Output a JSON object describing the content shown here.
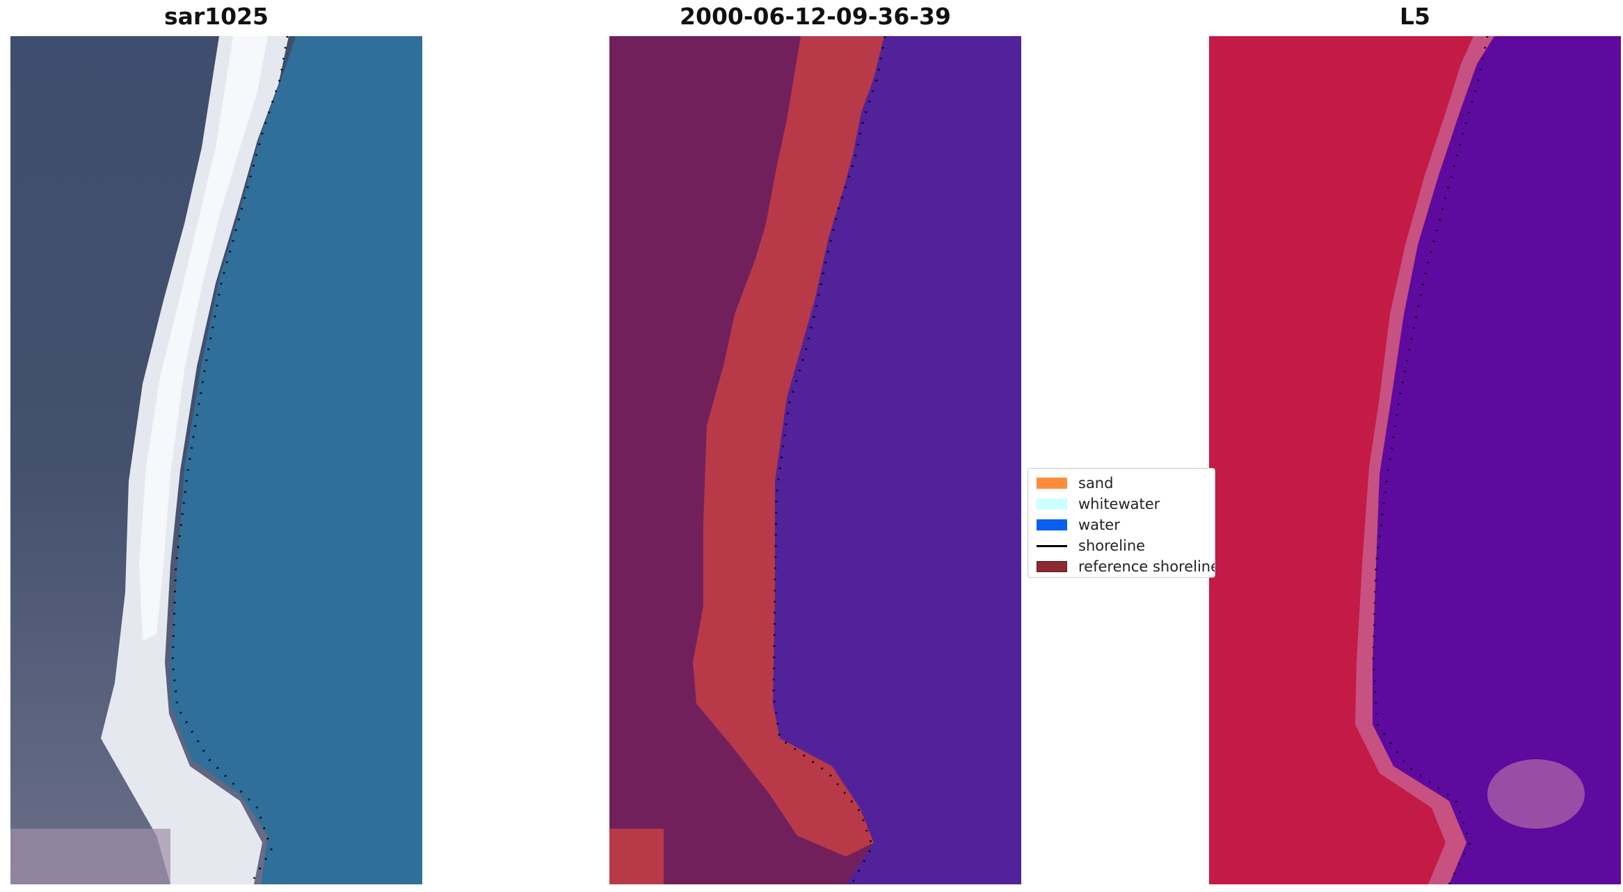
{
  "panels": [
    {
      "title": "sar1025",
      "kind": "rgb-image"
    },
    {
      "title": "2000-06-12-09-36-39",
      "kind": "classified-image"
    },
    {
      "title": "L5",
      "kind": "mndwi-image"
    }
  ],
  "legend": {
    "items": [
      {
        "label": "sand",
        "color": "#ff8c3a"
      },
      {
        "label": "whitewater",
        "color": "#ccffff"
      },
      {
        "label": "water",
        "color": "#0a5ff0"
      },
      {
        "label": "shoreline",
        "color": "#000000",
        "style": "line"
      },
      {
        "label": "reference shoreline",
        "color": "#8b2a30"
      }
    ]
  },
  "colors": {
    "sand_overlay": "#b83a48",
    "water_overlay": "#52229b",
    "land_overlay": "#72205c",
    "mndwi_land": "#c41a46",
    "mndwi_water": "#5e0a9f",
    "rgb_water": "#2f6f99",
    "rgb_beach": "#f2f2f4"
  }
}
